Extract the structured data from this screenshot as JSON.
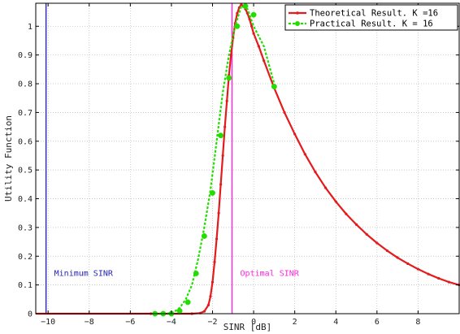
{
  "chart_data": {
    "type": "line",
    "title": "",
    "xlabel": "SINR [dB]",
    "ylabel": "Utility Function",
    "xlim": [
      -10.6,
      10
    ],
    "ylim": [
      0,
      1.08
    ],
    "xticks": [
      -10,
      -8,
      -6,
      -4,
      -2,
      0,
      2,
      4,
      6,
      8
    ],
    "yticks": [
      0,
      0.1,
      0.2,
      0.3,
      0.4,
      0.5,
      0.6,
      0.7,
      0.8,
      0.9,
      1
    ],
    "grid": true,
    "legend_position": "top-right",
    "series": [
      {
        "name": "Theoretical Result. K =16",
        "color": "#e41a1c",
        "style": "solid",
        "marker": "dot",
        "x": [
          -10.6,
          -5,
          -3,
          -2.6,
          -2.4,
          -2.2,
          -2.1,
          -2.0,
          -1.9,
          -1.8,
          -1.7,
          -1.6,
          -1.5,
          -1.4,
          -1.3,
          -1.2,
          -1.1,
          -1.0,
          -0.9,
          -0.8,
          -0.7,
          -0.6,
          -0.5,
          -0.4,
          -0.3,
          -0.2,
          -0.1,
          0.0,
          0.25,
          0.5,
          1.0,
          1.5,
          2.0,
          2.5,
          3.0,
          3.5,
          4.0,
          4.5,
          5.0,
          5.5,
          6.0,
          6.5,
          7.0,
          7.5,
          8.0,
          8.5,
          9.0,
          9.5,
          10.0
        ],
        "y": [
          0,
          0,
          0,
          0.002,
          0.008,
          0.03,
          0.06,
          0.11,
          0.18,
          0.26,
          0.35,
          0.45,
          0.55,
          0.65,
          0.74,
          0.83,
          0.9,
          0.96,
          1.01,
          1.045,
          1.065,
          1.075,
          1.07,
          1.06,
          1.045,
          1.025,
          1.0,
          0.975,
          0.93,
          0.88,
          0.785,
          0.7,
          0.625,
          0.555,
          0.493,
          0.438,
          0.39,
          0.347,
          0.31,
          0.276,
          0.246,
          0.219,
          0.195,
          0.174,
          0.155,
          0.138,
          0.123,
          0.11,
          0.1
        ]
      },
      {
        "name": "Practical Result. K = 16",
        "color": "#22dd00",
        "style": "dashed",
        "marker": "circle",
        "x": [
          -4.8,
          -4.5,
          -4.2,
          -3.9,
          -3.6,
          -3.3,
          -3.0,
          -2.7,
          -2.4,
          -2.1,
          -1.8,
          -1.5,
          -1.2,
          -0.9,
          -0.6,
          -0.3,
          0.0,
          0.5,
          1.0
        ],
        "y": [
          0.0,
          0.0,
          0.0,
          0.005,
          0.02,
          0.05,
          0.1,
          0.19,
          0.3,
          0.43,
          0.6,
          0.77,
          0.9,
          1.0,
          1.07,
          1.06,
          1.0,
          0.93,
          0.8
        ],
        "markers_x": [
          -4.8,
          -4.4,
          -4.0,
          -3.6,
          -3.2,
          -2.8,
          -2.4,
          -2.0,
          -1.6,
          -1.2,
          -0.8,
          -0.4,
          0.0,
          1.0
        ],
        "markers_y": [
          0.0,
          0.0,
          0.0,
          0.01,
          0.04,
          0.14,
          0.27,
          0.42,
          0.62,
          0.82,
          1.0,
          1.07,
          1.04,
          0.79
        ]
      }
    ],
    "reference_lines": [
      {
        "name": "Minimum SINR",
        "x": -10.1,
        "color": "#2424b8",
        "label": "Minimum SINR",
        "label_y": 0.14
      },
      {
        "name": "Optimal SINR",
        "x": -1.05,
        "color": "#ff22dd",
        "label": "Optimal SINR",
        "label_y": 0.14
      }
    ]
  }
}
